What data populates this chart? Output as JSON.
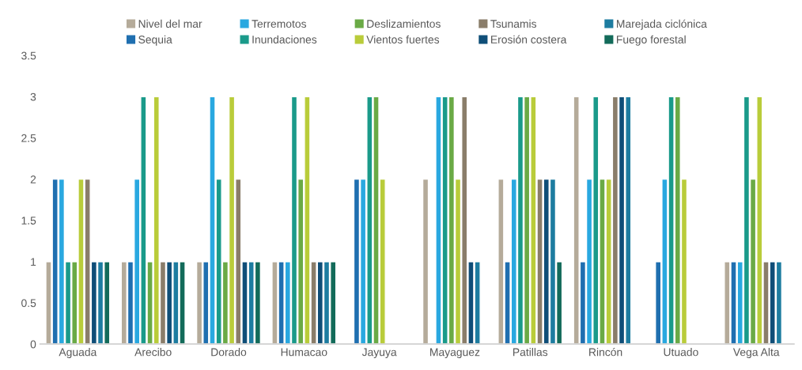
{
  "chart_data": {
    "type": "bar",
    "categories": [
      "Aguada",
      "Arecibo",
      "Dorado",
      "Humacao",
      "Jayuya",
      "Mayaguez",
      "Patillas",
      "Rincón",
      "Utuado",
      "Vega Alta"
    ],
    "series": [
      {
        "name": "Nivel del mar",
        "color": "#b5ab9a",
        "values": [
          1,
          1,
          1,
          1,
          null,
          2,
          2,
          3,
          null,
          1
        ]
      },
      {
        "name": "Sequia",
        "color": "#1f6fb0",
        "values": [
          2,
          1,
          1,
          1,
          2,
          null,
          1,
          1,
          1,
          1
        ]
      },
      {
        "name": "Terremotos",
        "color": "#29a8e0",
        "values": [
          2,
          2,
          3,
          1,
          2,
          3,
          2,
          2,
          2,
          1
        ]
      },
      {
        "name": "Inundaciones",
        "color": "#1a9a8a",
        "values": [
          1,
          3,
          2,
          3,
          3,
          3,
          3,
          3,
          3,
          3
        ]
      },
      {
        "name": "Deslizamientos",
        "color": "#6aaa46",
        "values": [
          1,
          1,
          1,
          2,
          3,
          3,
          3,
          2,
          3,
          2
        ]
      },
      {
        "name": "Vientos fuertes",
        "color": "#b9cc3a",
        "values": [
          2,
          3,
          3,
          3,
          2,
          2,
          3,
          2,
          2,
          3
        ]
      },
      {
        "name": "Tsunamis",
        "color": "#8a7d6a",
        "values": [
          2,
          1,
          2,
          1,
          null,
          3,
          2,
          3,
          null,
          1
        ]
      },
      {
        "name": "Erosión costera",
        "color": "#0f4e78",
        "values": [
          1,
          1,
          1,
          1,
          null,
          1,
          2,
          3,
          null,
          1
        ]
      },
      {
        "name": "Marejada ciclónica",
        "color": "#1d7ca0",
        "values": [
          1,
          1,
          1,
          1,
          null,
          1,
          2,
          3,
          null,
          1
        ]
      },
      {
        "name": "Fuego forestal",
        "color": "#136b5a",
        "values": [
          1,
          1,
          1,
          1,
          null,
          null,
          1,
          null,
          null,
          null
        ]
      }
    ],
    "ylim": [
      0,
      3.5
    ],
    "yticks": [
      0,
      0.5,
      1,
      1.5,
      2,
      2.5,
      3,
      3.5
    ],
    "grid": false,
    "legend": "top"
  }
}
